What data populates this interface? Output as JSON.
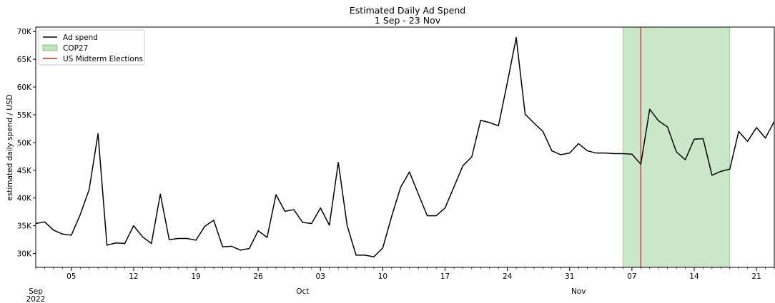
{
  "chart_data": {
    "type": "line",
    "title": "Estimated Daily Ad Spend",
    "subtitle": "1 Sep - 23 Nov",
    "xlabel": "",
    "ylabel": "estimated daily spend / USD",
    "xlim": [
      "2022-09-01",
      "2022-11-23"
    ],
    "ylim": [
      27500,
      70800
    ],
    "grid": false,
    "legend_position": "top-left",
    "y_ticks": [
      {
        "value": 30000,
        "label": "30K"
      },
      {
        "value": 35000,
        "label": "35K"
      },
      {
        "value": 40000,
        "label": "40K"
      },
      {
        "value": 45000,
        "label": "45K"
      },
      {
        "value": 50000,
        "label": "50K"
      },
      {
        "value": 55000,
        "label": "55K"
      },
      {
        "value": 60000,
        "label": "60K"
      },
      {
        "value": 65000,
        "label": "65K"
      },
      {
        "value": 70000,
        "label": "70K"
      }
    ],
    "x_ticks": [
      {
        "date": "2022-09-05",
        "label": "05"
      },
      {
        "date": "2022-09-12",
        "label": "12"
      },
      {
        "date": "2022-09-19",
        "label": "19"
      },
      {
        "date": "2022-09-26",
        "label": "26"
      },
      {
        "date": "2022-10-03",
        "label": "03"
      },
      {
        "date": "2022-10-10",
        "label": "10"
      },
      {
        "date": "2022-10-17",
        "label": "17"
      },
      {
        "date": "2022-10-24",
        "label": "24"
      },
      {
        "date": "2022-10-31",
        "label": "31"
      },
      {
        "date": "2022-11-07",
        "label": "07"
      },
      {
        "date": "2022-11-14",
        "label": "14"
      },
      {
        "date": "2022-11-21",
        "label": "21"
      }
    ],
    "x_major_labels": [
      {
        "date": "2022-09-01",
        "label": "Sep",
        "sublabel": "2022"
      },
      {
        "date": "2022-10-01",
        "label": "Oct",
        "sublabel": ""
      },
      {
        "date": "2022-11-01",
        "label": "Nov",
        "sublabel": ""
      }
    ],
    "series": [
      {
        "name": "Ad spend",
        "color": "#000000",
        "points": [
          [
            "2022-09-01",
            35400
          ],
          [
            "2022-09-02",
            35700
          ],
          [
            "2022-09-03",
            34200
          ],
          [
            "2022-09-04",
            33500
          ],
          [
            "2022-09-05",
            33300
          ],
          [
            "2022-09-06",
            37000
          ],
          [
            "2022-09-07",
            41500
          ],
          [
            "2022-09-08",
            51600
          ],
          [
            "2022-09-09",
            31500
          ],
          [
            "2022-09-10",
            31900
          ],
          [
            "2022-09-11",
            31800
          ],
          [
            "2022-09-12",
            35000
          ],
          [
            "2022-09-13",
            33000
          ],
          [
            "2022-09-14",
            31800
          ],
          [
            "2022-09-15",
            40700
          ],
          [
            "2022-09-16",
            32500
          ],
          [
            "2022-09-17",
            32700
          ],
          [
            "2022-09-18",
            32700
          ],
          [
            "2022-09-19",
            32400
          ],
          [
            "2022-09-20",
            34900
          ],
          [
            "2022-09-21",
            36000
          ],
          [
            "2022-09-22",
            31200
          ],
          [
            "2022-09-23",
            31300
          ],
          [
            "2022-09-24",
            30600
          ],
          [
            "2022-09-25",
            30900
          ],
          [
            "2022-09-26",
            34100
          ],
          [
            "2022-09-27",
            32900
          ],
          [
            "2022-09-28",
            40600
          ],
          [
            "2022-09-29",
            37600
          ],
          [
            "2022-09-30",
            37900
          ],
          [
            "2022-10-01",
            35600
          ],
          [
            "2022-10-02",
            35400
          ],
          [
            "2022-10-03",
            38200
          ],
          [
            "2022-10-04",
            35100
          ],
          [
            "2022-10-05",
            46400
          ],
          [
            "2022-10-06",
            35000
          ],
          [
            "2022-10-07",
            29700
          ],
          [
            "2022-10-08",
            29700
          ],
          [
            "2022-10-09",
            29400
          ],
          [
            "2022-10-10",
            31000
          ],
          [
            "2022-10-11",
            36700
          ],
          [
            "2022-10-12",
            41900
          ],
          [
            "2022-10-13",
            44700
          ],
          [
            "2022-10-14",
            40700
          ],
          [
            "2022-10-15",
            36800
          ],
          [
            "2022-10-16",
            36800
          ],
          [
            "2022-10-17",
            38200
          ],
          [
            "2022-10-18",
            42000
          ],
          [
            "2022-10-19",
            45800
          ],
          [
            "2022-10-20",
            47400
          ],
          [
            "2022-10-21",
            54000
          ],
          [
            "2022-10-22",
            53600
          ],
          [
            "2022-10-23",
            53000
          ],
          [
            "2022-10-24",
            60800
          ],
          [
            "2022-10-25",
            68900
          ],
          [
            "2022-10-26",
            55100
          ],
          [
            "2022-10-27",
            53500
          ],
          [
            "2022-10-28",
            52000
          ],
          [
            "2022-10-29",
            48500
          ],
          [
            "2022-10-30",
            47800
          ],
          [
            "2022-10-31",
            48100
          ],
          [
            "2022-11-01",
            49800
          ],
          [
            "2022-11-02",
            48500
          ],
          [
            "2022-11-03",
            48100
          ],
          [
            "2022-11-04",
            48100
          ],
          [
            "2022-11-05",
            48000
          ],
          [
            "2022-11-06",
            48000
          ],
          [
            "2022-11-07",
            47900
          ],
          [
            "2022-11-08",
            46100
          ],
          [
            "2022-11-09",
            56000
          ],
          [
            "2022-11-10",
            53900
          ],
          [
            "2022-11-11",
            52800
          ],
          [
            "2022-11-12",
            48300
          ],
          [
            "2022-11-13",
            46900
          ],
          [
            "2022-11-14",
            50600
          ],
          [
            "2022-11-15",
            50700
          ],
          [
            "2022-11-16",
            44100
          ],
          [
            "2022-11-17",
            44800
          ],
          [
            "2022-11-18",
            45200
          ],
          [
            "2022-11-19",
            52000
          ],
          [
            "2022-11-20",
            50200
          ],
          [
            "2022-11-21",
            52700
          ],
          [
            "2022-11-22",
            50800
          ],
          [
            "2022-11-23",
            53800
          ]
        ]
      }
    ],
    "spans": [
      {
        "name": "COP27",
        "start": "2022-11-06",
        "end": "2022-11-18",
        "color": "#2ca02c",
        "opacity": 0.25
      }
    ],
    "vlines": [
      {
        "name": "US Midterm Elections",
        "date": "2022-11-08",
        "color": "#d62728"
      }
    ],
    "legend": [
      {
        "label": "Ad spend",
        "kind": "line",
        "color": "#000000"
      },
      {
        "label": "COP27",
        "kind": "patch",
        "color": "#2ca02c"
      },
      {
        "label": "US Midterm Elections",
        "kind": "line",
        "color": "#d62728"
      }
    ]
  }
}
